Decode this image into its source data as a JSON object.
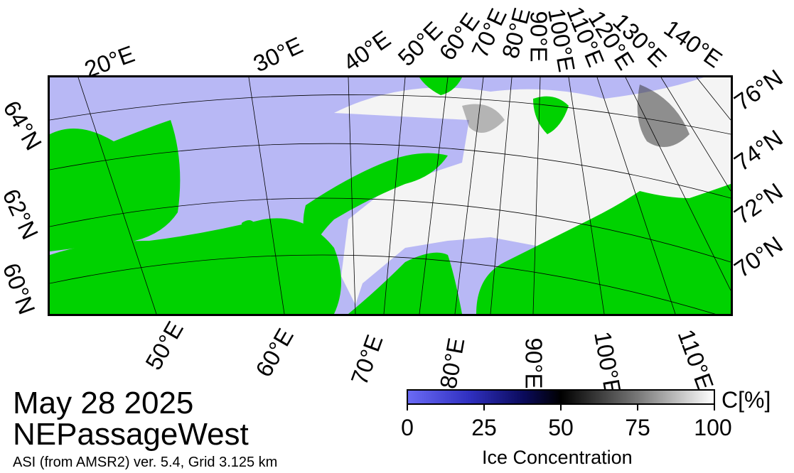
{
  "title": {
    "date": "May 28 2025",
    "region": "NEPassageWest"
  },
  "subtitle": "ASI (from AMSR2) ver. 5.4,  Grid 3.125 km",
  "colorbar": {
    "title": "Ice Concentration",
    "unit": "C[%]",
    "ticks": [
      "0",
      "25",
      "50",
      "75",
      "100"
    ],
    "colors": {
      "low": "#5a5af0",
      "mid": "#000000",
      "high": "#ffffff"
    }
  },
  "map": {
    "colors": {
      "land": "#00d200",
      "water": "#b8b8f5",
      "ice": "#ffffff",
      "grid": "#000000"
    },
    "top_lon_labels": [
      "20°E",
      "30°E",
      "40°E",
      "50°E",
      "60°E",
      "70°E",
      "80°E",
      "90°E",
      "100°E",
      "110°E",
      "120°E",
      "130°E",
      "140°E"
    ],
    "bottom_lon_labels": [
      "50°E",
      "60°E",
      "70°E",
      "80°E",
      "90°E",
      "100°E",
      "110°E"
    ],
    "left_lat_labels": [
      "64°N",
      "62°N",
      "60°N"
    ],
    "right_lat_labels": [
      "76°N",
      "74°N",
      "72°N",
      "70°N"
    ]
  }
}
